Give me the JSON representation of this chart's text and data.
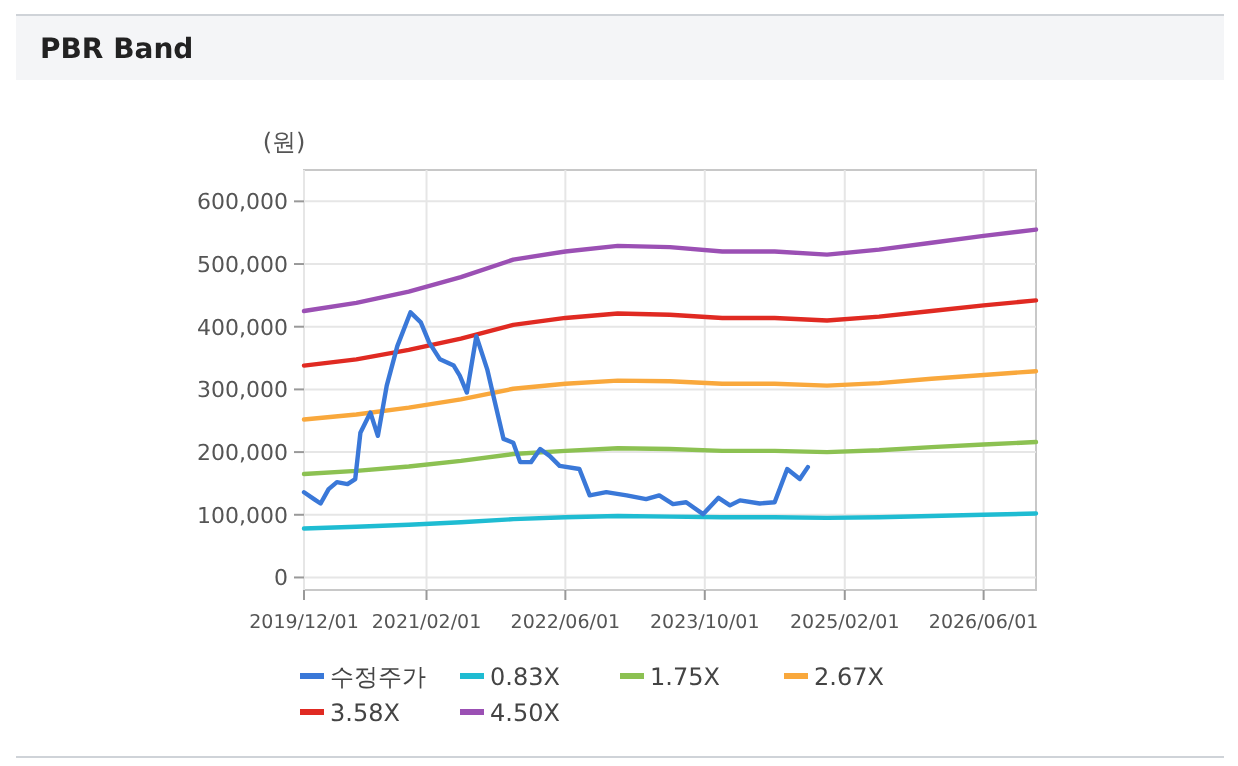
{
  "chart_data": {
    "type": "line",
    "title": "PBR Band",
    "ylabel": "(원)",
    "xlim": [
      "2019-12-01",
      "2026-12-01"
    ],
    "xticks": [
      {
        "value": "2019-12-01",
        "label": "2019/12/01"
      },
      {
        "value": "2021-02-01",
        "label": "2021/02/01"
      },
      {
        "value": "2022-06-01",
        "label": "2022/06/01"
      },
      {
        "value": "2023-10-01",
        "label": "2023/10/01"
      },
      {
        "value": "2025-02-01",
        "label": "2025/02/01"
      },
      {
        "value": "2026-06-01",
        "label": "2026/06/01"
      }
    ],
    "ylim": [
      -20000,
      650000
    ],
    "yticks": [
      {
        "value": 0,
        "label": "0"
      },
      {
        "value": 100000,
        "label": "100,000"
      },
      {
        "value": 200000,
        "label": "200,000"
      },
      {
        "value": 300000,
        "label": "300,000"
      },
      {
        "value": 400000,
        "label": "400,000"
      },
      {
        "value": 500000,
        "label": "500,000"
      },
      {
        "value": 600000,
        "label": "600,000"
      }
    ],
    "grid": true,
    "legend": "bottom",
    "series": [
      {
        "name": "수정주가",
        "color": "#3a78d8",
        "x": [
          "2019-12-01",
          "2020-01-05",
          "2020-01-28",
          "2020-02-25",
          "2020-03-25",
          "2020-05-01",
          "2020-05-28",
          "2020-06-15",
          "2020-07-20",
          "2020-08-15",
          "2020-09-15",
          "2020-10-22",
          "2020-12-07",
          "2021-01-12",
          "2021-02-10",
          "2021-03-20",
          "2021-05-07",
          "2021-05-28",
          "2021-06-22",
          "2021-07-25",
          "2021-09-01",
          "2021-09-25",
          "2021-10-28",
          "2021-12-01",
          "2021-12-25",
          "2022-02-01",
          "2022-03-05",
          "2022-04-07",
          "2022-05-12",
          "2022-07-20",
          "2022-08-25",
          "2022-10-22",
          "2023-01-01",
          "2023-03-10",
          "2023-04-25",
          "2023-06-12",
          "2023-07-28",
          "2023-09-25",
          "2023-11-18",
          "2023-12-28",
          "2024-02-01",
          "2024-04-10",
          "2024-06-01",
          "2024-07-15",
          "2024-08-28",
          "2024-09-25"
        ],
        "values": [
          136000,
          125000,
          118000,
          141000,
          152000,
          149000,
          157000,
          231000,
          263000,
          226000,
          306000,
          369000,
          423000,
          407000,
          375000,
          348000,
          338000,
          322000,
          295000,
          385000,
          332000,
          285000,
          221000,
          215000,
          184000,
          184000,
          205000,
          194000,
          178000,
          173000,
          131000,
          136000,
          131000,
          125000,
          131000,
          117000,
          120000,
          101000,
          127000,
          115000,
          123000,
          118000,
          120000,
          173000,
          157000,
          176000
        ]
      },
      {
        "name": "0.83X",
        "color": "#1fbcd2",
        "values": [
          78000,
          81000,
          84000,
          88000,
          93000,
          96000,
          98000,
          97000,
          96000,
          96000,
          95000,
          96000,
          98000,
          100000,
          102000
        ]
      },
      {
        "name": "1.75X",
        "color": "#8cc152",
        "values": [
          165000,
          170000,
          177000,
          186000,
          197000,
          202000,
          206000,
          205000,
          202000,
          202000,
          200000,
          203000,
          208000,
          212000,
          216000
        ]
      },
      {
        "name": "2.67X",
        "color": "#f9a83c",
        "values": [
          252000,
          260000,
          271000,
          284000,
          301000,
          309000,
          314000,
          313000,
          309000,
          309000,
          306000,
          310000,
          317000,
          323000,
          329000
        ]
      },
      {
        "name": "3.58X",
        "color": "#e02a22",
        "values": [
          338000,
          348000,
          363000,
          381000,
          403000,
          414000,
          421000,
          419000,
          414000,
          414000,
          410000,
          416000,
          425000,
          434000,
          442000
        ]
      },
      {
        "name": "4.50X",
        "color": "#9b50b4",
        "values": [
          425000,
          438000,
          456000,
          479000,
          507000,
          520000,
          529000,
          527000,
          520000,
          520000,
          515000,
          523000,
          534000,
          545000,
          555000
        ]
      }
    ],
    "x": [
      "2019-12-01",
      "2020-06-01",
      "2020-12-01",
      "2021-06-01",
      "2021-12-01",
      "2022-06-01",
      "2022-12-01",
      "2023-06-01",
      "2023-12-01",
      "2024-06-01",
      "2024-12-01",
      "2025-06-01",
      "2025-12-01",
      "2026-06-01",
      "2026-12-01"
    ]
  }
}
